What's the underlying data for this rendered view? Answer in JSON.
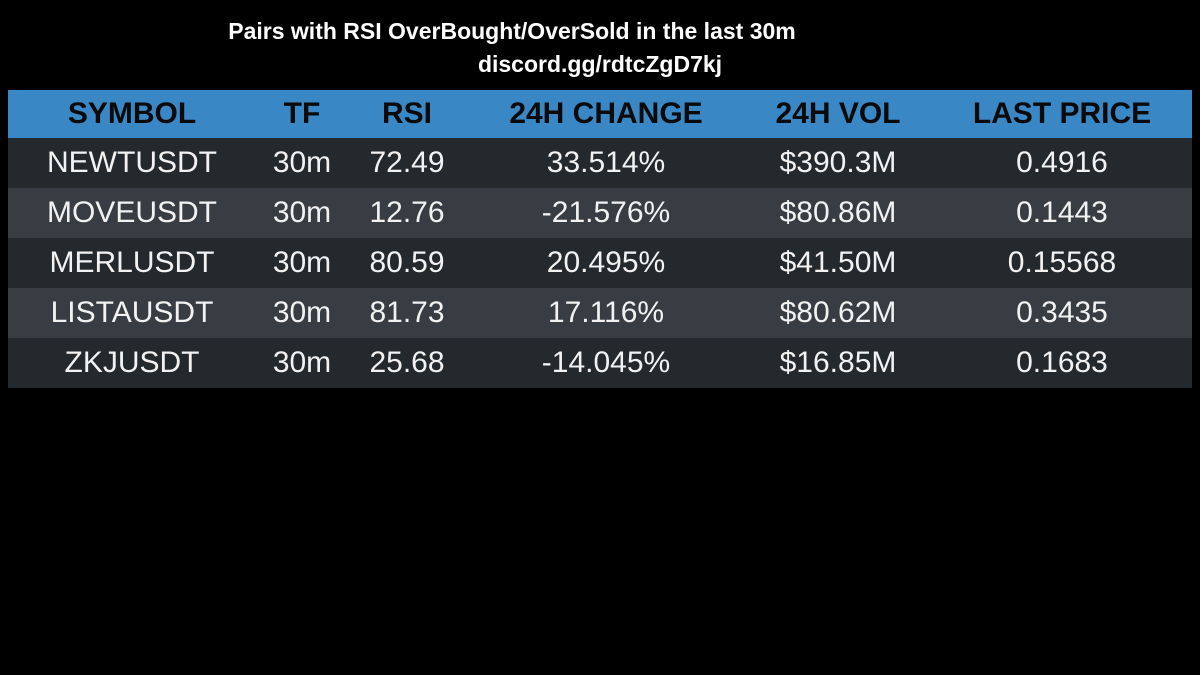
{
  "header": {
    "title": "Pairs with RSI OverBought/OverSold in the last 30m",
    "subtitle": "discord.gg/rdtcZgD7kj"
  },
  "table": {
    "columns": [
      "SYMBOL",
      "TF",
      "RSI",
      "24H CHANGE",
      "24H VOL",
      "LAST PRICE"
    ],
    "rows": [
      [
        "NEWTUSDT",
        "30m",
        "72.49",
        "33.514%",
        "$390.3M",
        "0.4916"
      ],
      [
        "MOVEUSDT",
        "30m",
        "12.76",
        "-21.576%",
        "$80.86M",
        "0.1443"
      ],
      [
        "MERLUSDT",
        "30m",
        "80.59",
        "20.495%",
        "$41.50M",
        "0.15568"
      ],
      [
        "LISTAUSDT",
        "30m",
        "81.73",
        "17.116%",
        "$80.62M",
        "0.3435"
      ],
      [
        "ZKJUSDT",
        "30m",
        "25.68",
        "-14.045%",
        "$16.85M",
        "0.1683"
      ]
    ]
  }
}
